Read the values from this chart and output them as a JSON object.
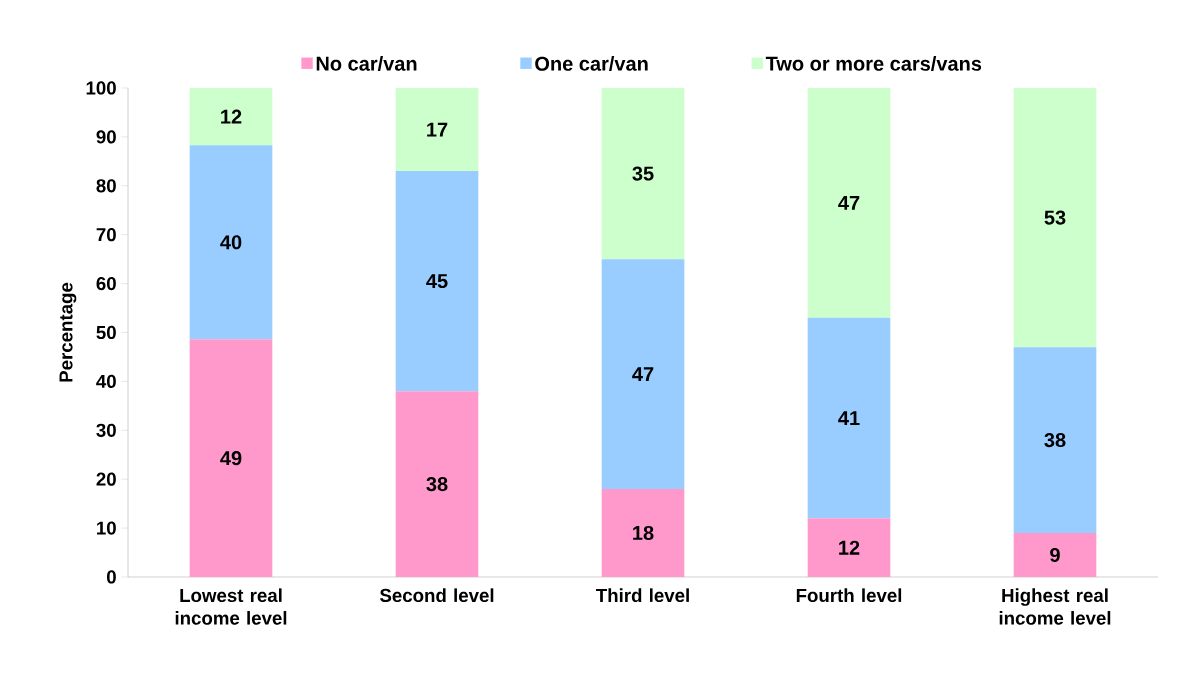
{
  "chart_data": {
    "type": "bar",
    "stacked": true,
    "ylabel": "Percentage",
    "categories": [
      "Lowest real income level",
      "Second level",
      "Third level",
      "Fourth level",
      "Highest real income level"
    ],
    "series": [
      {
        "name": "No car/van",
        "color": "#ff99cc",
        "values": [
          48.6,
          38,
          18,
          12,
          9
        ],
        "value_labels": [
          "49",
          "38",
          "18",
          "12",
          "9"
        ]
      },
      {
        "name": "One car/van",
        "color": "#99ccff",
        "values": [
          39.7,
          45,
          47,
          41,
          38
        ],
        "value_labels": [
          "40",
          "45",
          "47",
          "41",
          "38"
        ]
      },
      {
        "name": "Two or more cars/vans",
        "color": "#ccffcc",
        "values": [
          11.7,
          17,
          35,
          47,
          53
        ],
        "value_labels": [
          "12",
          "17",
          "35",
          "47",
          "53"
        ]
      }
    ],
    "ylim": [
      0,
      100
    ],
    "yticks": [
      0,
      10,
      20,
      30,
      40,
      50,
      60,
      70,
      80,
      90,
      100
    ],
    "legend": "top",
    "grid": false
  }
}
